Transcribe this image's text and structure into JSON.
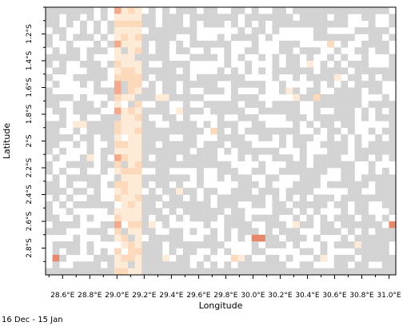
{
  "map": {
    "xlabel": "Longitude",
    "ylabel": "Latitude",
    "caption": "16 Dec  - 15 Jan",
    "x_ticks": [
      "28.6°E",
      "28.8°E",
      "29.0°E",
      "29.2°E",
      "29.4°E",
      "29.6°E",
      "29.8°E",
      "30.0°E",
      "30.2°E",
      "30.4°E",
      "30.6°E",
      "30.8°E",
      "31.0°E"
    ],
    "y_ticks": [
      "1.2°S",
      "1.4°S",
      "1.6°S",
      "1.8°S",
      "2°S",
      "2.2°S",
      "2.4°S",
      "2.6°S",
      "2.8°S"
    ],
    "colors": {
      "missing": "#d3d3d3",
      "empty": "#ffffff",
      "level1": "#fdebd8",
      "level2": "#fdd9bc",
      "level3": "#f6a98a",
      "level4": "#e8876a"
    }
  },
  "chart_data": {
    "type": "heatmap",
    "xlabel": "Longitude",
    "ylabel": "Latitude",
    "xlim": [
      28.475,
      31.05
    ],
    "ylim": [
      -3.0,
      -1.0
    ],
    "x_unit": "degrees East",
    "y_unit": "degrees South",
    "grid_resolution_deg": 0.05,
    "legend": "none",
    "highlighted_cells": [
      {
        "lon": 29.0,
        "lat": -1.0,
        "level": 3
      },
      {
        "lon": 29.0,
        "lat": -1.25,
        "level": 3
      },
      {
        "lon": 29.0,
        "lat": -1.55,
        "level": 3
      },
      {
        "lon": 29.0,
        "lat": -1.6,
        "level": 3
      },
      {
        "lon": 29.0,
        "lat": -1.75,
        "level": 3
      },
      {
        "lon": 29.0,
        "lat": -2.1,
        "level": 3
      },
      {
        "lon": 29.0,
        "lat": -2.15,
        "level": 3
      },
      {
        "lon": 29.0,
        "lat": -2.65,
        "level": 3
      },
      {
        "lon": 28.55,
        "lat": -2.85,
        "level": 4
      },
      {
        "lon": 30.0,
        "lat": -2.7,
        "level": 4
      },
      {
        "lon": 30.05,
        "lat": -2.7,
        "level": 4
      },
      {
        "lon": 31.0,
        "lat": -2.65,
        "level": 4
      },
      {
        "lon": 29.05,
        "lat": -1.5,
        "level": 2
      },
      {
        "lon": 29.1,
        "lat": -1.55,
        "level": 2
      },
      {
        "lon": 29.05,
        "lat": -2.1,
        "level": 2
      },
      {
        "lon": 29.1,
        "lat": -1.75,
        "level": 2
      },
      {
        "lon": 29.05,
        "lat": -2.85,
        "level": 2
      },
      {
        "lon": 29.85,
        "lat": -2.9,
        "level": 2
      },
      {
        "lon": 30.55,
        "lat": -1.25,
        "level": 2
      },
      {
        "lon": 30.45,
        "lat": -1.7,
        "level": 2
      },
      {
        "lon": 29.7,
        "lat": -1.95,
        "level": 2
      },
      {
        "lon": 29.3,
        "lat": -1.7,
        "level": 1
      },
      {
        "lon": 29.35,
        "lat": -1.7,
        "level": 1
      },
      {
        "lon": 29.45,
        "lat": -1.75,
        "level": 1
      },
      {
        "lon": 28.7,
        "lat": -1.85,
        "level": 1
      },
      {
        "lon": 28.75,
        "lat": -1.85,
        "level": 1
      },
      {
        "lon": 28.8,
        "lat": -2.1,
        "level": 1
      },
      {
        "lon": 29.35,
        "lat": -2.85,
        "level": 1
      },
      {
        "lon": 29.9,
        "lat": -2.85,
        "level": 1
      },
      {
        "lon": 30.3,
        "lat": -2.6,
        "level": 1
      },
      {
        "lon": 30.25,
        "lat": -1.65,
        "level": 1
      },
      {
        "lon": 30.3,
        "lat": -1.7,
        "level": 1
      },
      {
        "lon": 30.4,
        "lat": -1.45,
        "level": 1
      },
      {
        "lon": 30.6,
        "lat": -1.5,
        "level": 1
      },
      {
        "lon": 30.5,
        "lat": -2.9,
        "level": 1
      },
      {
        "lon": 29.45,
        "lat": -2.4,
        "level": 1
      },
      {
        "lon": 29.25,
        "lat": -2.6,
        "level": 1
      },
      {
        "lon": 30.75,
        "lat": -2.75,
        "level": 1
      }
    ]
  }
}
